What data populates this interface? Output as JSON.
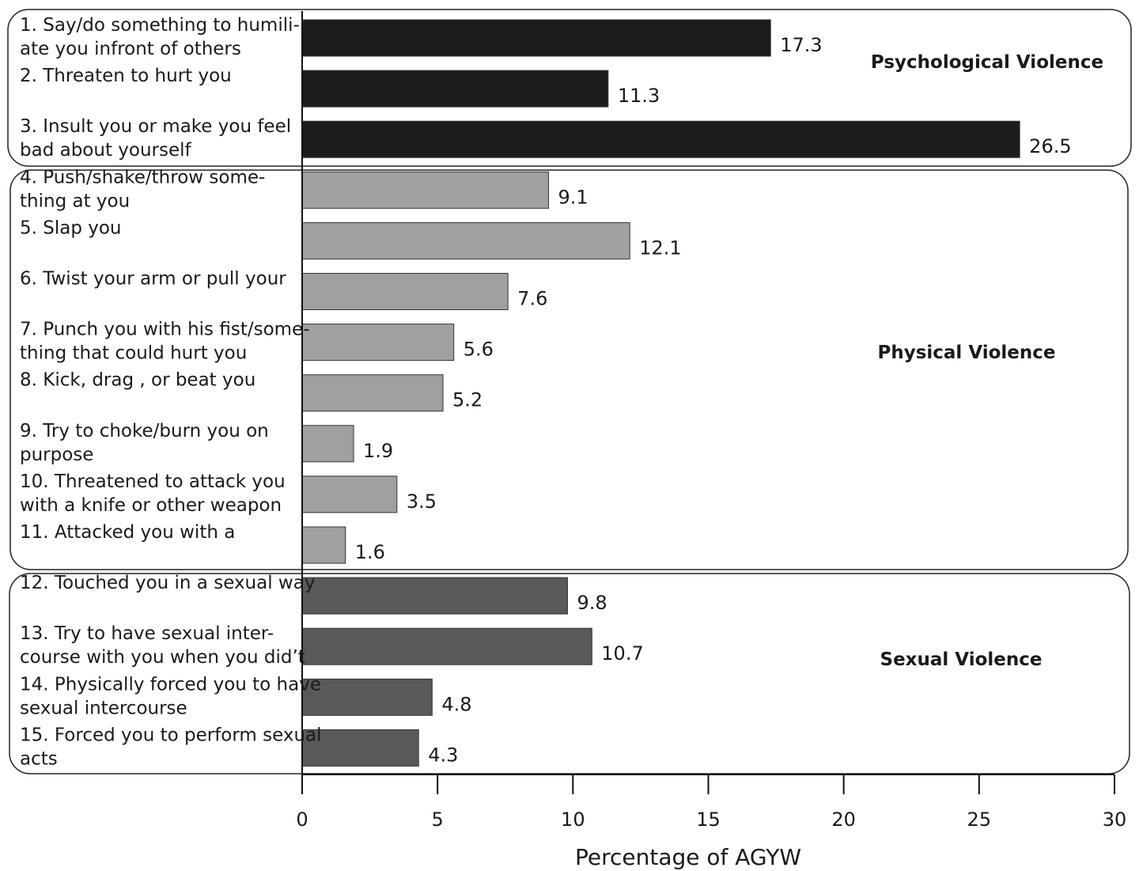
{
  "chart_data": {
    "type": "bar",
    "orientation": "horizontal",
    "xlabel": "Percentage of AGYW",
    "xlim": [
      0,
      30
    ],
    "xticks": [
      0,
      5,
      10,
      15,
      20,
      25,
      30
    ],
    "groups": [
      {
        "name": "Psychological Violence",
        "color": "#1c1c1c",
        "items": [
          {
            "label": [
              "1. Say/do something to humili-",
              "ate you infront of others"
            ],
            "value": 17.3
          },
          {
            "label": [
              "2. Threaten to hurt you"
            ],
            "value": 11.3
          },
          {
            "label": [
              "3. Insult you or make you feel",
              "bad about yourself"
            ],
            "value": 26.5
          }
        ]
      },
      {
        "name": "Physical Violence",
        "color": "#a0a0a0",
        "items": [
          {
            "label": [
              "4. Push/shake/throw some-",
              "thing at you"
            ],
            "value": 9.1
          },
          {
            "label": [
              "5. Slap you"
            ],
            "value": 12.1
          },
          {
            "label": [
              "6. Twist your arm or pull your"
            ],
            "value": 7.6
          },
          {
            "label": [
              "7. Punch you with his fist/some-",
              "thing that could hurt you"
            ],
            "value": 5.6
          },
          {
            "label": [
              "8. Kick, drag , or beat you"
            ],
            "value": 5.2
          },
          {
            "label": [
              "9. Try to choke/burn you on",
              "purpose"
            ],
            "value": 1.9
          },
          {
            "label": [
              "10. Threatened to attack you",
              "with a knife or other weapon"
            ],
            "value": 3.5
          },
          {
            "label": [
              "11. Attacked you with a"
            ],
            "value": 1.6
          }
        ]
      },
      {
        "name": "Sexual Violence",
        "color": "#58595b",
        "items": [
          {
            "label": [
              "12. Touched you in a sexual way"
            ],
            "value": 9.8
          },
          {
            "label": [
              "13. Try to have sexual inter-",
              "course with you when you did’t"
            ],
            "value": 10.7
          },
          {
            "label": [
              "14. Physically forced you to have",
              "sexual intercourse"
            ],
            "value": 4.8
          },
          {
            "label": [
              "15. Forced you to perform sexual",
              "acts"
            ],
            "value": 4.3
          }
        ]
      }
    ]
  }
}
